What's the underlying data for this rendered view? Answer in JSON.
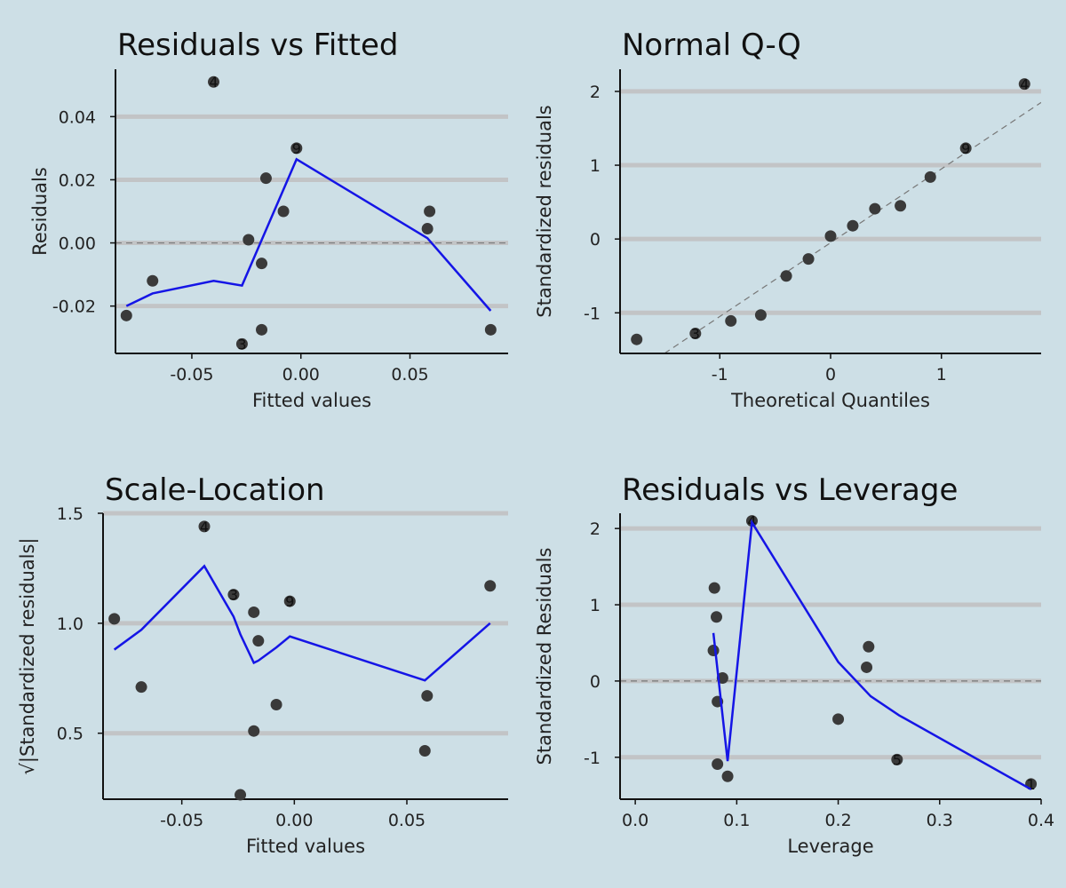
{
  "chart_data": [
    {
      "type": "scatter",
      "title": "Residuals vs Fitted",
      "xlabel": "Fitted values",
      "ylabel": "Residuals",
      "xlim": [
        -0.085,
        0.095
      ],
      "ylim": [
        -0.035,
        0.055
      ],
      "x_ticks": [
        -0.05,
        0.0,
        0.05
      ],
      "x_tick_labels": [
        "-0.05",
        "0.00",
        "0.05"
      ],
      "y_ticks": [
        -0.02,
        0.0,
        0.02,
        0.04
      ],
      "y_tick_labels": [
        "-0.02",
        "0.00",
        "0.02",
        "0.04"
      ],
      "grid": true,
      "reference_line": {
        "type": "horizontal",
        "value": 0
      },
      "points": [
        {
          "x": -0.08,
          "y": -0.023
        },
        {
          "x": -0.068,
          "y": -0.012
        },
        {
          "x": -0.04,
          "y": 0.051,
          "label": "4"
        },
        {
          "x": -0.027,
          "y": -0.032,
          "label": "3"
        },
        {
          "x": -0.024,
          "y": 0.001
        },
        {
          "x": -0.018,
          "y": -0.0065
        },
        {
          "x": -0.018,
          "y": -0.0275
        },
        {
          "x": -0.016,
          "y": 0.0205
        },
        {
          "x": -0.008,
          "y": 0.01
        },
        {
          "x": -0.002,
          "y": 0.03,
          "label": "9"
        },
        {
          "x": 0.058,
          "y": 0.0045
        },
        {
          "x": 0.059,
          "y": 0.01
        },
        {
          "x": 0.087,
          "y": -0.0275
        }
      ],
      "smooth": {
        "x": [
          -0.08,
          -0.068,
          -0.04,
          -0.027,
          -0.002,
          0.058,
          0.087
        ],
        "y": [
          -0.02,
          -0.016,
          -0.012,
          -0.0135,
          0.0265,
          0.0015,
          -0.0215
        ]
      }
    },
    {
      "type": "scatter",
      "title": "Normal Q-Q",
      "xlabel": "Theoretical Quantiles",
      "ylabel": "Standardized residuals",
      "xlim": [
        -1.9,
        1.9
      ],
      "ylim": [
        -1.55,
        2.3
      ],
      "x_ticks": [
        -1,
        0,
        1
      ],
      "x_tick_labels": [
        "-1",
        "0",
        "1"
      ],
      "y_ticks": [
        -1,
        0,
        1,
        2
      ],
      "y_tick_labels": [
        "-1",
        "0",
        "1",
        "2"
      ],
      "grid": true,
      "reference_line": {
        "type": "line",
        "x": [
          -1.9,
          1.9
        ],
        "y": [
          -1.95,
          1.85
        ]
      },
      "points": [
        {
          "x": -1.75,
          "y": -1.36
        },
        {
          "x": -1.22,
          "y": -1.28,
          "label": "3"
        },
        {
          "x": -0.9,
          "y": -1.11
        },
        {
          "x": -0.63,
          "y": -1.03
        },
        {
          "x": -0.4,
          "y": -0.5
        },
        {
          "x": -0.2,
          "y": -0.27
        },
        {
          "x": 0.0,
          "y": 0.04
        },
        {
          "x": 0.2,
          "y": 0.18
        },
        {
          "x": 0.4,
          "y": 0.41
        },
        {
          "x": 0.63,
          "y": 0.45
        },
        {
          "x": 0.9,
          "y": 0.84
        },
        {
          "x": 1.22,
          "y": 1.23,
          "label": "9"
        },
        {
          "x": 1.75,
          "y": 2.1,
          "label": "4"
        }
      ]
    },
    {
      "type": "scatter",
      "title": "Scale-Location",
      "xlabel": "Fitted values",
      "ylabel": "√|Standardized residuals|",
      "xlim": [
        -0.085,
        0.095
      ],
      "ylim": [
        0.2,
        1.5
      ],
      "x_ticks": [
        -0.05,
        0.0,
        0.05
      ],
      "x_tick_labels": [
        "-0.05",
        "0.00",
        "0.05"
      ],
      "y_ticks": [
        0.5,
        1.0,
        1.5
      ],
      "y_tick_labels": [
        "0.5",
        "1.0",
        "1.5"
      ],
      "grid": true,
      "points": [
        {
          "x": -0.08,
          "y": 1.02
        },
        {
          "x": -0.068,
          "y": 0.71
        },
        {
          "x": -0.04,
          "y": 1.44,
          "label": "4"
        },
        {
          "x": -0.027,
          "y": 1.13,
          "label": "3"
        },
        {
          "x": -0.024,
          "y": 0.22
        },
        {
          "x": -0.018,
          "y": 1.05
        },
        {
          "x": -0.018,
          "y": 0.51
        },
        {
          "x": -0.016,
          "y": 0.92
        },
        {
          "x": -0.008,
          "y": 0.63
        },
        {
          "x": -0.002,
          "y": 1.1,
          "label": "9"
        },
        {
          "x": 0.058,
          "y": 0.42
        },
        {
          "x": 0.059,
          "y": 0.67
        },
        {
          "x": 0.087,
          "y": 1.17
        }
      ],
      "smooth": {
        "x": [
          -0.08,
          -0.068,
          -0.04,
          -0.027,
          -0.024,
          -0.018,
          -0.016,
          -0.008,
          -0.002,
          0.058,
          0.087
        ],
        "y": [
          0.88,
          0.97,
          1.26,
          1.03,
          0.95,
          0.82,
          0.83,
          0.89,
          0.94,
          0.74,
          1.0
        ]
      }
    },
    {
      "type": "scatter",
      "title": "Residuals vs Leverage",
      "xlabel": "Leverage",
      "ylabel": "Standardized Residuals",
      "xlim": [
        -0.015,
        0.4
      ],
      "ylim": [
        -1.55,
        2.2
      ],
      "x_ticks": [
        0.0,
        0.1,
        0.2,
        0.3,
        0.4
      ],
      "x_tick_labels": [
        "0.0",
        "0.1",
        "0.2",
        "0.3",
        "0.4"
      ],
      "y_ticks": [
        -1,
        0,
        1,
        2
      ],
      "y_tick_labels": [
        "-1",
        "0",
        "1",
        "2"
      ],
      "grid": true,
      "reference_line": {
        "type": "horizontal",
        "value": 0
      },
      "points": [
        {
          "x": 0.077,
          "y": 0.4
        },
        {
          "x": 0.078,
          "y": 1.22
        },
        {
          "x": 0.08,
          "y": 0.84
        },
        {
          "x": 0.081,
          "y": -0.27
        },
        {
          "x": 0.081,
          "y": -1.09
        },
        {
          "x": 0.086,
          "y": 0.04
        },
        {
          "x": 0.091,
          "y": -1.25
        },
        {
          "x": 0.115,
          "y": 2.1,
          "label": "4"
        },
        {
          "x": 0.2,
          "y": -0.5
        },
        {
          "x": 0.228,
          "y": 0.18
        },
        {
          "x": 0.23,
          "y": 0.45
        },
        {
          "x": 0.258,
          "y": -1.03,
          "label": "5"
        },
        {
          "x": 0.39,
          "y": -1.35,
          "label": "1"
        }
      ],
      "smooth": {
        "x": [
          0.077,
          0.091,
          0.115,
          0.2,
          0.232,
          0.26,
          0.39
        ],
        "y": [
          0.63,
          -1.05,
          2.08,
          0.25,
          -0.2,
          -0.45,
          -1.42
        ]
      }
    }
  ]
}
